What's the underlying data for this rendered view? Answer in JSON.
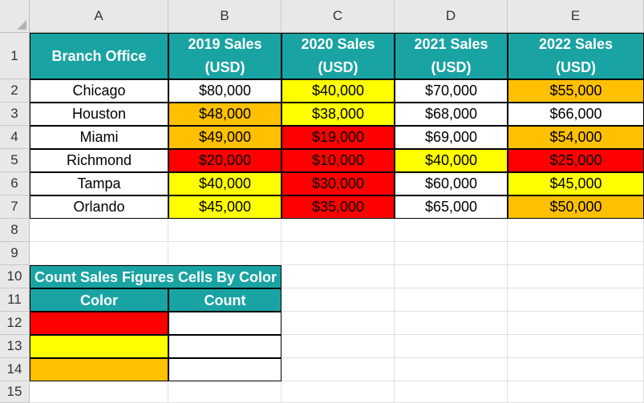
{
  "columns": [
    "A",
    "B",
    "C",
    "D",
    "E"
  ],
  "rows": [
    "1",
    "2",
    "3",
    "4",
    "5",
    "6",
    "7",
    "8",
    "9",
    "10",
    "11",
    "12",
    "13",
    "14",
    "15"
  ],
  "colors": {
    "teal": "#1aa3a3",
    "red": "#ff0000",
    "yellow": "#ffff00",
    "orange": "#ffc000",
    "white": "#ffffff"
  },
  "table": {
    "header": {
      "branch": "Branch Office",
      "years": [
        {
          "line1": "2019 Sales",
          "line2": "(USD)"
        },
        {
          "line1": "2020 Sales",
          "line2": "(USD)"
        },
        {
          "line1": "2021 Sales",
          "line2": "(USD)"
        },
        {
          "line1": "2022 Sales",
          "line2": "(USD)"
        }
      ]
    },
    "rows": [
      {
        "branch": "Chicago",
        "values": [
          "$80,000",
          "$40,000",
          "$70,000",
          "$55,000"
        ],
        "fills": [
          "white",
          "yellow",
          "white",
          "orange"
        ]
      },
      {
        "branch": "Houston",
        "values": [
          "$48,000",
          "$38,000",
          "$68,000",
          "$66,000"
        ],
        "fills": [
          "orange",
          "yellow",
          "white",
          "white"
        ]
      },
      {
        "branch": "Miami",
        "values": [
          "$49,000",
          "$19,000",
          "$69,000",
          "$54,000"
        ],
        "fills": [
          "orange",
          "red",
          "white",
          "orange"
        ]
      },
      {
        "branch": "Richmond",
        "values": [
          "$20,000",
          "$10,000",
          "$40,000",
          "$25,000"
        ],
        "fills": [
          "red",
          "red",
          "yellow",
          "red"
        ]
      },
      {
        "branch": "Tampa",
        "values": [
          "$40,000",
          "$30,000",
          "$60,000",
          "$45,000"
        ],
        "fills": [
          "yellow",
          "red",
          "white",
          "yellow"
        ]
      },
      {
        "branch": "Orlando",
        "values": [
          "$45,000",
          "$35,000",
          "$65,000",
          "$50,000"
        ],
        "fills": [
          "yellow",
          "red",
          "white",
          "orange"
        ]
      }
    ]
  },
  "count_table": {
    "title": "Count Sales Figures Cells By Color",
    "color_header": "Color",
    "count_header": "Count",
    "rows": [
      {
        "fill": "red",
        "count": ""
      },
      {
        "fill": "yellow",
        "count": ""
      },
      {
        "fill": "orange",
        "count": ""
      }
    ]
  }
}
